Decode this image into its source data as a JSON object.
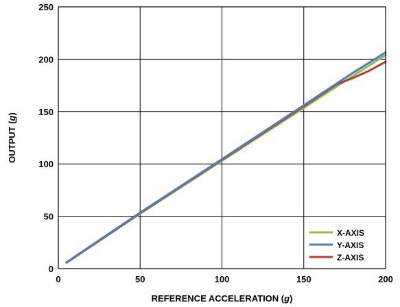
{
  "chart_data": {
    "type": "line",
    "xlabel": {
      "text": "REFERENCE ACCELERATION (",
      "unit": "g",
      "suffix": ")"
    },
    "ylabel": {
      "text": "OUTPUT (",
      "unit": "g",
      "suffix": ")"
    },
    "xlim": [
      0,
      200
    ],
    "ylim": [
      0,
      250
    ],
    "xticks": [
      0,
      50,
      100,
      150,
      200
    ],
    "yticks": [
      0,
      50,
      100,
      150,
      200,
      250
    ],
    "grid": true,
    "legend_position": "bottom-right",
    "series": [
      {
        "name": "X-AXIS",
        "color": "#9bbb3c",
        "points": [
          [
            5,
            5.5
          ],
          [
            50,
            52.5
          ],
          [
            100,
            103
          ],
          [
            150,
            153.5
          ],
          [
            180,
            184
          ],
          [
            200,
            204
          ]
        ]
      },
      {
        "name": "Y-AXIS",
        "color": "#4a7ebf",
        "points": [
          [
            5,
            6
          ],
          [
            50,
            53.5
          ],
          [
            100,
            104.5
          ],
          [
            150,
            156
          ],
          [
            180,
            187
          ],
          [
            200,
            206.5
          ]
        ]
      },
      {
        "name": "Z-AXIS",
        "color": "#c0392b",
        "points": [
          [
            5,
            5.8
          ],
          [
            50,
            53
          ],
          [
            100,
            104
          ],
          [
            150,
            155
          ],
          [
            170,
            176
          ],
          [
            180,
            182
          ],
          [
            190,
            189
          ],
          [
            200,
            197.5
          ]
        ]
      }
    ]
  }
}
